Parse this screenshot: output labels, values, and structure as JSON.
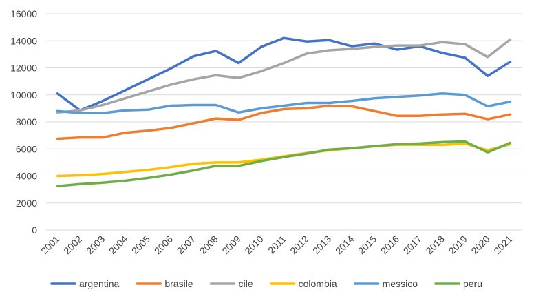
{
  "chart_data": {
    "type": "line",
    "title": "",
    "xlabel": "",
    "ylabel": "",
    "x": [
      "2001",
      "2002",
      "2003",
      "2004",
      "2005",
      "2006",
      "2007",
      "2008",
      "2009",
      "2010",
      "2011",
      "2012",
      "2013",
      "2014",
      "2015",
      "2016",
      "2017",
      "2018",
      "2019",
      "2020",
      "2021"
    ],
    "ylim": [
      0,
      16000
    ],
    "yticks": [
      0,
      2000,
      4000,
      6000,
      8000,
      10000,
      12000,
      14000,
      16000
    ],
    "ytick_labels": [
      "0",
      "2000",
      "4000",
      "6000",
      "8000",
      "10000",
      "12000",
      "14000",
      "16000"
    ],
    "grid": true,
    "legend_position": "bottom",
    "series": [
      {
        "name": "argentina",
        "color": "#4472c4",
        "values": [
          10100,
          8850,
          9550,
          10350,
          11150,
          11950,
          12850,
          13250,
          12350,
          13550,
          14200,
          13950,
          14050,
          13600,
          13800,
          13350,
          13600,
          13100,
          12750,
          11400,
          12450
        ]
      },
      {
        "name": "brasile",
        "color": "#ed7d31",
        "values": [
          6750,
          6850,
          6850,
          7200,
          7350,
          7550,
          7900,
          8250,
          8150,
          8650,
          8950,
          9000,
          9200,
          9150,
          8800,
          8450,
          8450,
          8550,
          8600,
          8200,
          8550
        ]
      },
      {
        "name": "cile",
        "color": "#a5a5a5",
        "values": [
          8700,
          8850,
          9250,
          9750,
          10250,
          10750,
          11150,
          11450,
          11250,
          11750,
          12350,
          13050,
          13300,
          13400,
          13550,
          13650,
          13650,
          13900,
          13750,
          12800,
          14100
        ]
      },
      {
        "name": "colombia",
        "color": "#ffc000",
        "values": [
          4000,
          4050,
          4150,
          4300,
          4450,
          4650,
          4900,
          5000,
          5000,
          5200,
          5450,
          5700,
          5900,
          6050,
          6200,
          6300,
          6300,
          6300,
          6400,
          5900,
          6350
        ]
      },
      {
        "name": "messico",
        "color": "#5b9bd5",
        "values": [
          8800,
          8650,
          8650,
          8850,
          8900,
          9200,
          9250,
          9250,
          8700,
          9000,
          9200,
          9400,
          9400,
          9550,
          9750,
          9850,
          9950,
          10100,
          10000,
          9150,
          9500
        ]
      },
      {
        "name": "peru",
        "color": "#70ad47",
        "values": [
          3250,
          3400,
          3500,
          3650,
          3850,
          4100,
          4400,
          4750,
          4750,
          5100,
          5400,
          5650,
          5950,
          6050,
          6200,
          6350,
          6400,
          6500,
          6550,
          5750,
          6450
        ]
      }
    ]
  }
}
